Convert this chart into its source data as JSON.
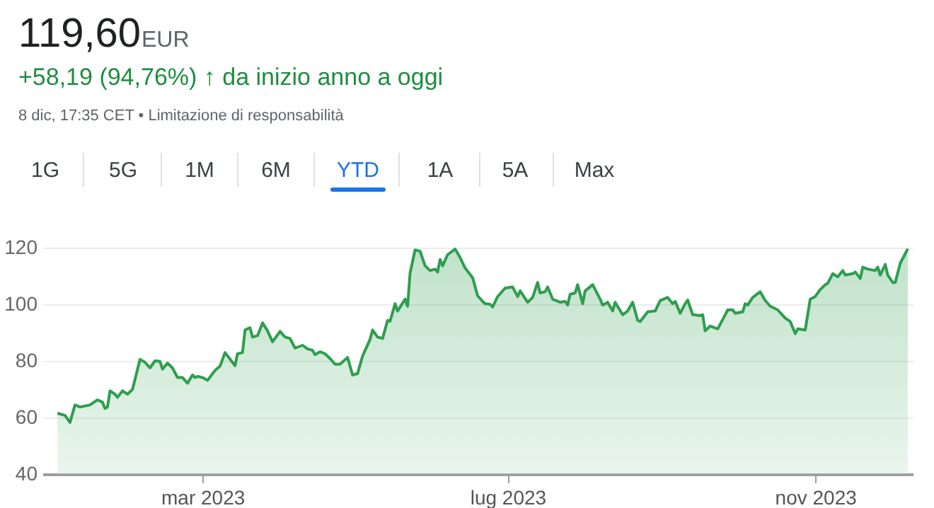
{
  "chart_data": {
    "type": "area",
    "title": "119,60",
    "annotations": [
      "EUR",
      "+58,19 (94,76%) ↑ da inizio anno a oggi",
      "8 dic, 17:35 CET • Limitazione di responsabilità",
      "1G",
      "5G",
      "1M",
      "6M",
      "YTD",
      "1A",
      "5A",
      "Max"
    ],
    "x": [
      "2023-01-02",
      "2023-01-05",
      "2023-01-07",
      "2023-01-09",
      "2023-01-11",
      "2023-01-15",
      "2023-01-18",
      "2023-01-20",
      "2023-01-21",
      "2023-01-22",
      "2023-01-23",
      "2023-01-25",
      "2023-01-26",
      "2023-01-28",
      "2023-01-30",
      "2023-02-01",
      "2023-02-04",
      "2023-02-06",
      "2023-02-08",
      "2023-02-10",
      "2023-02-12",
      "2023-02-13",
      "2023-02-15",
      "2023-02-17",
      "2023-02-19",
      "2023-02-21",
      "2023-02-23",
      "2023-02-25",
      "2023-02-26",
      "2023-02-27",
      "2023-03-01",
      "2023-03-03",
      "2023-03-06",
      "2023-03-08",
      "2023-03-10",
      "2023-03-14",
      "2023-03-15",
      "2023-03-17",
      "2023-03-18",
      "2023-03-20",
      "2023-03-21",
      "2023-03-23",
      "2023-03-25",
      "2023-03-27",
      "2023-03-29",
      "2023-04-01",
      "2023-04-03",
      "2023-04-05",
      "2023-04-07",
      "2023-04-10",
      "2023-04-12",
      "2023-04-14",
      "2023-04-15",
      "2023-04-17",
      "2023-04-19",
      "2023-04-21",
      "2023-04-23",
      "2023-04-25",
      "2023-04-28",
      "2023-04-30",
      "2023-05-02",
      "2023-05-04",
      "2023-05-07",
      "2023-05-08",
      "2023-05-10",
      "2023-05-12",
      "2023-05-14",
      "2023-05-15",
      "2023-05-17",
      "2023-05-18",
      "2023-05-21",
      "2023-05-22",
      "2023-05-23",
      "2023-05-25",
      "2023-05-27",
      "2023-05-29",
      "2023-05-31",
      "2023-06-02",
      "2023-06-03",
      "2023-06-04",
      "2023-06-05",
      "2023-06-07",
      "2023-06-10",
      "2023-06-12",
      "2023-06-14",
      "2023-06-17",
      "2023-06-19",
      "2023-06-21",
      "2023-06-22",
      "2023-06-24",
      "2023-06-25",
      "2023-06-27",
      "2023-06-30",
      "2023-07-03",
      "2023-07-05",
      "2023-07-06",
      "2023-07-09",
      "2023-07-11",
      "2023-07-13",
      "2023-07-14",
      "2023-07-16",
      "2023-07-17",
      "2023-07-19",
      "2023-07-22",
      "2023-07-24",
      "2023-07-25",
      "2023-07-26",
      "2023-07-28",
      "2023-07-29",
      "2023-07-31",
      "2023-08-01",
      "2023-08-04",
      "2023-08-07",
      "2023-08-08",
      "2023-08-10",
      "2023-08-12",
      "2023-08-13",
      "2023-08-16",
      "2023-08-18",
      "2023-08-20",
      "2023-08-22",
      "2023-08-23",
      "2023-08-26",
      "2023-08-29",
      "2023-08-31",
      "2023-09-03",
      "2023-09-05",
      "2023-09-06",
      "2023-09-08",
      "2023-09-10",
      "2023-09-11",
      "2023-09-13",
      "2023-09-16",
      "2023-09-17",
      "2023-09-18",
      "2023-09-20",
      "2023-09-23",
      "2023-09-25",
      "2023-09-27",
      "2023-09-29",
      "2023-09-30",
      "2023-10-03",
      "2023-10-04",
      "2023-10-05",
      "2023-10-07",
      "2023-10-10",
      "2023-10-12",
      "2023-10-14",
      "2023-10-17",
      "2023-10-20",
      "2023-10-22",
      "2023-10-24",
      "2023-10-25",
      "2023-10-28",
      "2023-10-30",
      "2023-11-01",
      "2023-11-03",
      "2023-11-05",
      "2023-11-06",
      "2023-11-08",
      "2023-11-10",
      "2023-11-12",
      "2023-11-13",
      "2023-11-16",
      "2023-11-17",
      "2023-11-19",
      "2023-11-20",
      "2023-11-22",
      "2023-11-25",
      "2023-11-26",
      "2023-11-27",
      "2023-11-29",
      "2023-11-30",
      "2023-12-02",
      "2023-12-03",
      "2023-12-05",
      "2023-12-08"
    ],
    "series": [
      {
        "color": "#2e9e4f",
        "values": [
          61.5,
          60.7,
          58.2,
          64.4,
          63.7,
          64.4,
          66.2,
          65.4,
          63.2,
          63.7,
          69.4,
          68.2,
          67.1,
          69.4,
          68.2,
          69.9,
          80.5,
          79.5,
          77.5,
          80.0,
          79.8,
          77.1,
          79.2,
          77.5,
          74.1,
          74.1,
          72.1,
          75.0,
          74.1,
          74.5,
          74.1,
          73.1,
          76.6,
          78.1,
          82.9,
          78.3,
          82.5,
          82.9,
          90.9,
          91.7,
          88.4,
          88.9,
          93.4,
          90.6,
          86.7,
          90.4,
          88.4,
          87.9,
          84.5,
          85.5,
          84.2,
          83.7,
          82.2,
          83.2,
          82.5,
          80.8,
          78.8,
          78.8,
          81.2,
          75.0,
          75.5,
          81.7,
          87.6,
          90.9,
          88.4,
          87.9,
          94.3,
          94.0,
          100.2,
          97.6,
          101.8,
          99.3,
          111.1,
          119.2,
          118.7,
          113.6,
          111.9,
          112.4,
          111.4,
          115.8,
          113.6,
          117.5,
          119.5,
          116.5,
          112.8,
          109.4,
          103.0,
          101.0,
          100.2,
          100.0,
          99.0,
          102.7,
          105.7,
          106.1,
          102.7,
          104.7,
          100.7,
          102.4,
          107.7,
          104.0,
          104.4,
          106.1,
          101.8,
          100.7,
          101.0,
          99.7,
          103.5,
          104.0,
          106.9,
          100.2,
          104.7,
          106.9,
          101.8,
          99.7,
          100.7,
          97.6,
          100.7,
          96.3,
          97.6,
          100.7,
          94.3,
          93.9,
          97.3,
          97.6,
          101.3,
          102.4,
          100.2,
          101.0,
          96.8,
          100.2,
          101.5,
          96.3,
          96.0,
          96.3,
          90.6,
          92.3,
          91.3,
          94.6,
          98.0,
          98.0,
          96.8,
          97.3,
          100.2,
          99.7,
          102.4,
          104.4,
          101.3,
          99.3,
          98.0,
          95.1,
          93.9,
          89.6,
          91.3,
          90.9,
          101.8,
          102.7,
          105.2,
          106.9,
          107.4,
          110.8,
          109.7,
          111.9,
          110.3,
          110.8,
          111.4,
          109.1,
          113.1,
          112.4,
          111.9,
          113.1,
          110.3,
          114.1,
          110.3,
          107.7,
          107.7,
          114.5,
          119.6
        ]
      }
    ],
    "xlim": [
      "2022-12-27",
      "2023-12-10"
    ],
    "xticks": [
      {
        "value": "2023-03-01",
        "label": "mar 2023"
      },
      {
        "value": "2023-07-01",
        "label": "lug 2023"
      },
      {
        "value": "2023-11-01",
        "label": "nov 2023"
      }
    ],
    "ylim": [
      40,
      120
    ],
    "yticks": [
      40,
      60,
      80,
      100,
      120
    ],
    "grid": "y",
    "marker": "none",
    "line_style": "solid"
  }
}
